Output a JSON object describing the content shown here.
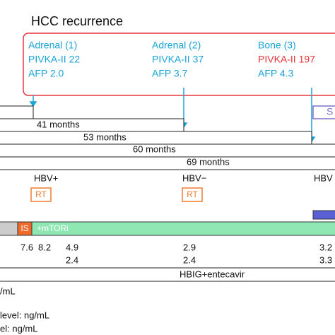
{
  "header": {
    "title": "HCC recurrence"
  },
  "recurrences": [
    {
      "site": "Adrenal (1)",
      "pivka": "PIVKA-II 22",
      "afp": "AFP 2.0"
    },
    {
      "site": "Adrenal (2)",
      "pivka": "PIVKA-II 37",
      "afp": "AFP 3.7"
    },
    {
      "site": "Bone (3)",
      "pivka": "PIVKA-II 197",
      "afp": "AFP 4.3"
    }
  ],
  "side_label": "S",
  "durations": [
    "41 months",
    "53 months",
    "60 months",
    "69 months"
  ],
  "hbv": [
    "HBV+",
    "HBV−",
    "HBV"
  ],
  "rt": [
    "RT",
    "RT"
  ],
  "treatment": {
    "is": "IS",
    "mtori": "+mTORi"
  },
  "levels": [
    "7.6",
    "8.2",
    "4.9",
    "2.4",
    "2.9",
    "2.4",
    "3.2",
    "3.3"
  ],
  "hbig": "HBIG+entecavir",
  "legend": [
    "/mL",
    "level: ng/mL",
    "el: ng/mL"
  ]
}
